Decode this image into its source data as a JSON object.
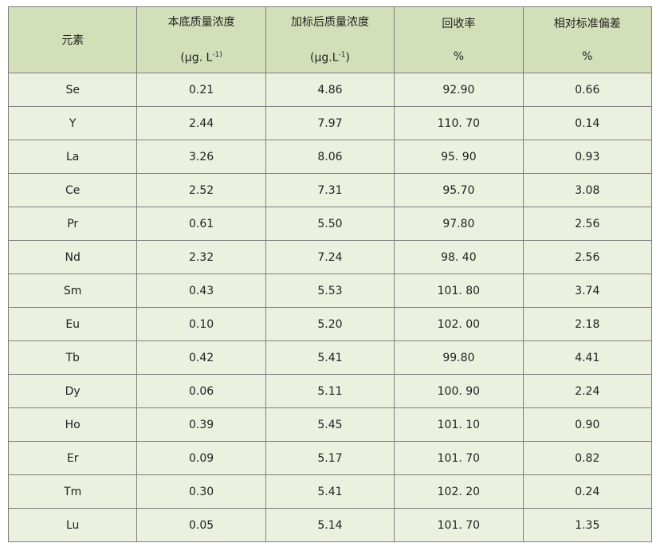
{
  "header": {
    "element": "元素",
    "background": {
      "title": "本底质量浓度",
      "unit_prefix": "(μg. L",
      "unit_sup": "-1)"
    },
    "spiked": {
      "title": "加标后质量浓度",
      "unit_prefix": "(μg.L",
      "unit_sup": "-1",
      "unit_suffix": ")"
    },
    "recovery": {
      "title": "回收率",
      "unit": "%"
    },
    "rsd": {
      "title": "相对标准偏差",
      "unit": "%"
    }
  },
  "rows": [
    [
      "Se",
      "0.21",
      "4.86",
      "92.90",
      "0.66"
    ],
    [
      "Y",
      "2.44",
      "7.97",
      "110. 70",
      "0.14"
    ],
    [
      "La",
      "3.26",
      "8.06",
      "95. 90",
      "0.93"
    ],
    [
      "Ce",
      "2.52",
      "7.31",
      "95.70",
      "3.08"
    ],
    [
      "Pr",
      "0.61",
      "5.50",
      "97.80",
      "2.56"
    ],
    [
      "Nd",
      "2.32",
      "7.24",
      "98. 40",
      "2.56"
    ],
    [
      "Sm",
      "0.43",
      "5.53",
      "101. 80",
      "3.74"
    ],
    [
      "Eu",
      "0.10",
      "5.20",
      "102. 00",
      "2.18"
    ],
    [
      "Tb",
      "0.42",
      "5.41",
      "99.80",
      "4.41"
    ],
    [
      "Dy",
      "0.06",
      "5.11",
      "100. 90",
      "2.24"
    ],
    [
      "Ho",
      "0.39",
      "5.45",
      "101. 10",
      "0.90"
    ],
    [
      "Er",
      "0.09",
      "5.17",
      "101. 70",
      "0.82"
    ],
    [
      "Tm",
      "0.30",
      "5.41",
      "102. 20",
      "0.24"
    ],
    [
      "Lu",
      "0.05",
      "5.14",
      "101. 70",
      "1.35"
    ]
  ],
  "colors": {
    "header_bg": "#d3dfb8",
    "body_bg": "#ebf1de",
    "border": "#7f7f7f"
  }
}
